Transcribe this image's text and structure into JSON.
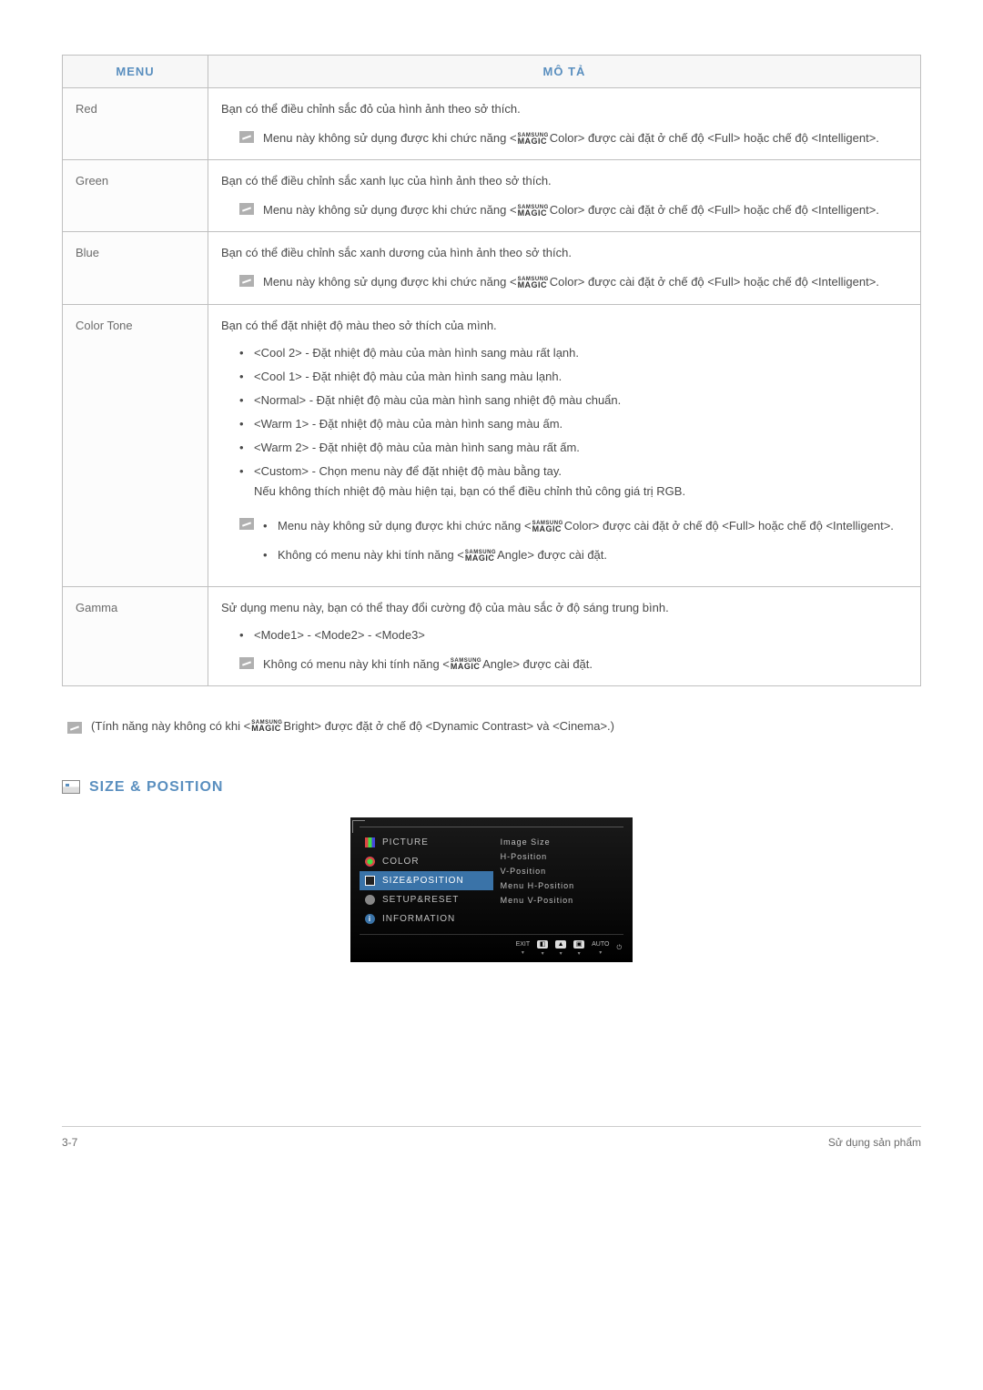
{
  "table": {
    "header_menu": "MENU",
    "header_desc": "MÔ TẢ",
    "rows": {
      "red": {
        "label": "Red",
        "desc": "Bạn có thể điều chỉnh sắc đỏ của hình ảnh theo sở thích.",
        "note": "Menu này không sử dụng được khi chức năng <|MAGIC|Color> được cài đặt ở chế độ <Full> hoặc chế độ <Intelligent>."
      },
      "green": {
        "label": "Green",
        "desc": "Bạn có thể điều chỉnh sắc xanh lục của hình ảnh theo sở thích.",
        "note": "Menu này không sử dụng được khi chức năng <|MAGIC|Color> được cài đặt ở chế độ <Full> hoặc chế độ <Intelligent>."
      },
      "blue": {
        "label": "Blue",
        "desc": "Bạn có thể điều chỉnh sắc xanh dương của hình ảnh theo sở thích.",
        "note": "Menu này không sử dụng được khi chức năng <|MAGIC|Color> được cài đặt ở chế độ <Full> hoặc chế độ <Intelligent>."
      },
      "colortone": {
        "label": "Color Tone",
        "desc": "Bạn có thể đặt nhiệt độ màu theo sở thích của mình.",
        "opts": [
          "<Cool 2> - Đặt nhiệt độ màu của màn hình sang màu rất lạnh.",
          "<Cool 1> - Đặt nhiệt độ màu của màn hình sang màu lạnh.",
          "<Normal> - Đặt nhiệt độ màu của màn hình sang nhiệt độ màu chuẩn.",
          "<Warm 1> - Đặt nhiệt độ màu của màn hình sang màu ấm.",
          "<Warm 2> - Đặt nhiệt độ màu của màn hình sang màu rất ấm.",
          "<Custom> - Chọn menu này để đặt nhiệt độ màu bằng tay.\nNếu không thích nhiệt độ màu hiện tại, bạn có thể điều chỉnh thủ công giá trị RGB."
        ],
        "notes": [
          "Menu này không sử dụng được khi chức năng <|MAGIC|Color> được cài đặt ở chế độ <Full> hoặc chế độ <Intelligent>.",
          "Không có menu này khi tính năng <|MAGIC|Angle> được cài đặt."
        ]
      },
      "gamma": {
        "label": "Gamma",
        "desc": "Sử dụng menu này, bạn có thể thay đổi cường độ của màu sắc ở độ sáng trung bình.",
        "opts": [
          "<Mode1> - <Mode2> - <Mode3>"
        ],
        "note": "Không có menu này khi tính năng <|MAGIC|Angle> được cài đặt."
      }
    }
  },
  "footer_note": "(Tính năng này không có khi <|MAGIC|Bright> được đặt ở chế độ <Dynamic Contrast> và <Cinema>.)",
  "section_title": "SIZE & POSITION",
  "osd": {
    "left": [
      "PICTURE",
      "COLOR",
      "SIZE&POSITION",
      "SETUP&RESET",
      "INFORMATION"
    ],
    "right": [
      "Image Size",
      "H-Position",
      "V-Position",
      "Menu H-Position",
      "Menu V-Position"
    ],
    "bottom": [
      "EXIT",
      "▢",
      "▲",
      "▣",
      "AUTO",
      "⏻"
    ],
    "selected_index": 2,
    "colors": {
      "bg": "#000000",
      "sel": "#3a73a8",
      "text": "#c0c0c0"
    }
  },
  "page_footer": {
    "left": "3-7",
    "right": "Sử dụng sản phẩm"
  }
}
